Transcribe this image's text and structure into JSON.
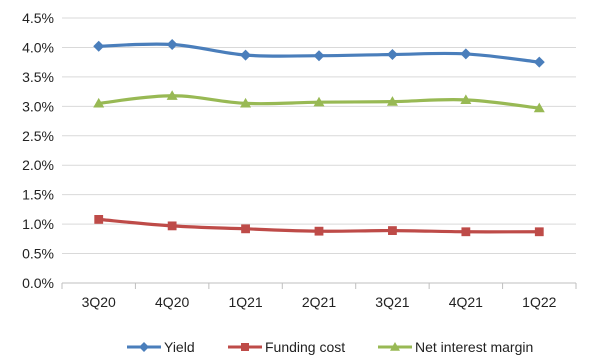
{
  "chart_data": {
    "type": "line",
    "categories": [
      "3Q20",
      "4Q20",
      "1Q21",
      "2Q21",
      "3Q21",
      "4Q21",
      "1Q22"
    ],
    "ylim": [
      0,
      0.045
    ],
    "yticks": [
      "0.0%",
      "0.5%",
      "1.0%",
      "1.5%",
      "2.0%",
      "2.5%",
      "3.0%",
      "3.5%",
      "4.0%",
      "4.5%"
    ],
    "grid": "horizontal",
    "legend_position": "bottom",
    "series": [
      {
        "name": "Yield",
        "color": "#4a7ebb",
        "marker": "diamond",
        "values": [
          0.0402,
          0.0405,
          0.0387,
          0.0386,
          0.0388,
          0.0389,
          0.0375
        ]
      },
      {
        "name": "Funding cost",
        "color": "#be4b48",
        "marker": "square",
        "values": [
          0.0108,
          0.0097,
          0.0092,
          0.0088,
          0.0089,
          0.0087,
          0.0087
        ]
      },
      {
        "name": "Net interest margin",
        "color": "#98b954",
        "marker": "triangle",
        "values": [
          0.0305,
          0.0318,
          0.0305,
          0.0307,
          0.0308,
          0.0311,
          0.0297
        ]
      }
    ]
  }
}
